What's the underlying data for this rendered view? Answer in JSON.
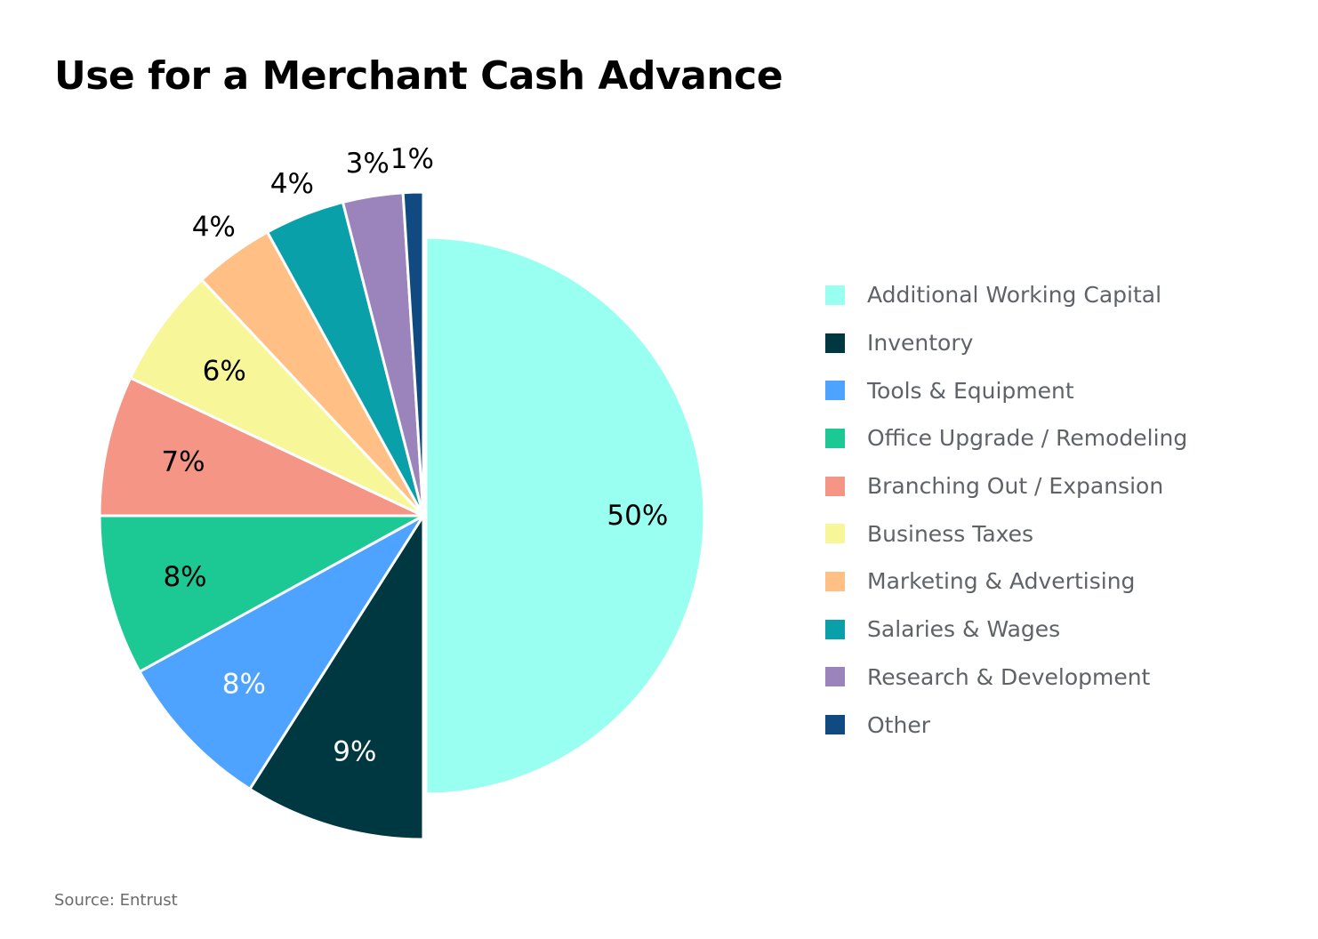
{
  "chart_data": {
    "type": "pie",
    "title": "Use for a Merchant Cash Advance",
    "source": "Source: Entrust",
    "legend_position": "right",
    "slices": [
      {
        "label": "Additional Working Capital",
        "value": 50,
        "value_label": "50%",
        "color": "#99fff0",
        "label_color": "#000000",
        "exploded": true
      },
      {
        "label": "Inventory",
        "value": 9,
        "value_label": "9%",
        "color": "#003842",
        "label_color": "#ffffff",
        "exploded": false
      },
      {
        "label": "Tools & Equipment",
        "value": 8,
        "value_label": "8%",
        "color": "#4da3ff",
        "label_color": "#ffffff",
        "exploded": false
      },
      {
        "label": "Office Upgrade / Remodeling",
        "value": 8,
        "value_label": "8%",
        "color": "#1cc995",
        "label_color": "#000000",
        "exploded": false
      },
      {
        "label": "Branching Out / Expansion",
        "value": 7,
        "value_label": "7%",
        "color": "#f49586",
        "label_color": "#000000",
        "exploded": false
      },
      {
        "label": "Business Taxes",
        "value": 6,
        "value_label": "6%",
        "color": "#f7f799",
        "label_color": "#000000",
        "exploded": false
      },
      {
        "label": "Marketing & Advertising",
        "value": 4,
        "value_label": "4%",
        "color": "#ffbf85",
        "label_color": "#000000",
        "exploded": false
      },
      {
        "label": "Salaries & Wages",
        "value": 4,
        "value_label": "4%",
        "color": "#0aa0aa",
        "label_color": "#000000",
        "exploded": false
      },
      {
        "label": "Research & Development",
        "value": 3,
        "value_label": "3%",
        "color": "#9b84bb",
        "label_color": "#000000",
        "exploded": false
      },
      {
        "label": "Other",
        "value": 1,
        "value_label": "1%",
        "color": "#114a80",
        "label_color": "#000000",
        "exploded": false
      }
    ]
  }
}
